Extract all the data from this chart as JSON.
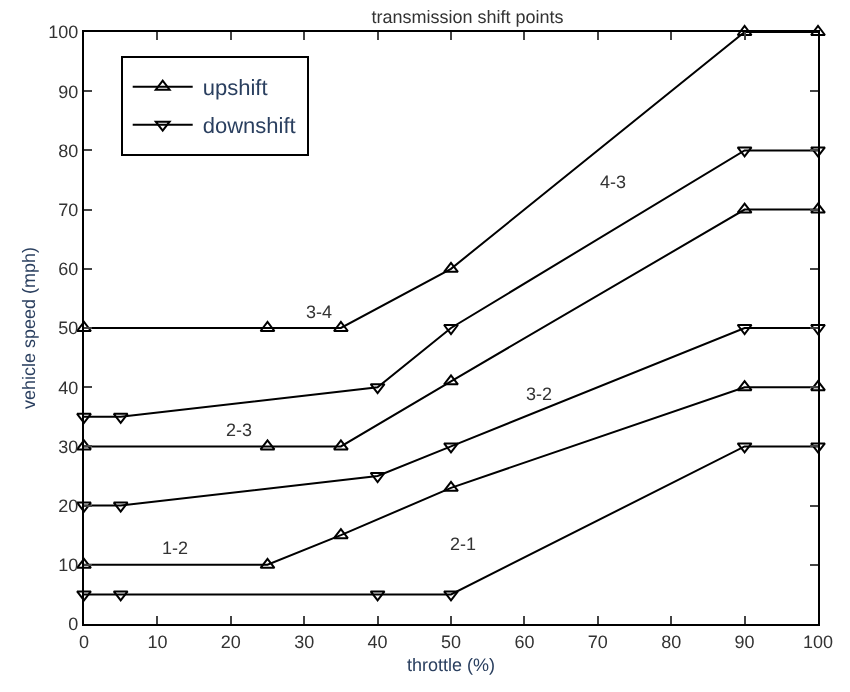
{
  "chart_data": {
    "type": "line",
    "title": "transmission shift points",
    "xlabel": "throttle (%)",
    "ylabel": "vehicle speed (mph)",
    "xlim": [
      0,
      100
    ],
    "ylim": [
      0,
      100
    ],
    "xticks": [
      0,
      10,
      20,
      30,
      40,
      50,
      60,
      70,
      80,
      90,
      100
    ],
    "yticks": [
      0,
      10,
      20,
      30,
      40,
      50,
      60,
      70,
      80,
      90,
      100
    ],
    "legend": "top left",
    "line_style": "solid",
    "series": [
      {
        "name": "upshift",
        "color": "#000000",
        "marker": "triangle",
        "x": [
          0,
          25,
          35,
          50,
          90,
          100
        ],
        "values": [
          10,
          10,
          15,
          23,
          40,
          40
        ]
      },
      {
        "name": "downshift",
        "color": "#000000",
        "marker": "triangle-down",
        "x": [
          0,
          5,
          40,
          50,
          90,
          100
        ],
        "values": [
          5,
          5,
          5,
          5,
          30,
          30
        ]
      },
      {
        "color": "#000000",
        "marker": "triangle",
        "x": [
          0,
          25,
          35,
          50,
          90,
          100
        ],
        "values": [
          30,
          30,
          30,
          41,
          70,
          70
        ]
      },
      {
        "color": "#000000",
        "marker": "triangle-down",
        "x": [
          0,
          5,
          40,
          50,
          90,
          100
        ],
        "values": [
          20,
          20,
          25,
          30,
          50,
          50
        ]
      },
      {
        "color": "#000000",
        "marker": "triangle",
        "x": [
          0,
          25,
          35,
          50,
          90,
          100
        ],
        "values": [
          50,
          50,
          50,
          60,
          100,
          100
        ]
      },
      {
        "color": "#000000",
        "marker": "triangle-down",
        "x": [
          0,
          5,
          40,
          50,
          90,
          100
        ],
        "values": [
          35,
          35,
          40,
          50,
          80,
          80
        ]
      }
    ],
    "annotations": [
      "1-2",
      "2-1",
      "2-3",
      "3-2",
      "3-4",
      "4-3"
    ]
  }
}
